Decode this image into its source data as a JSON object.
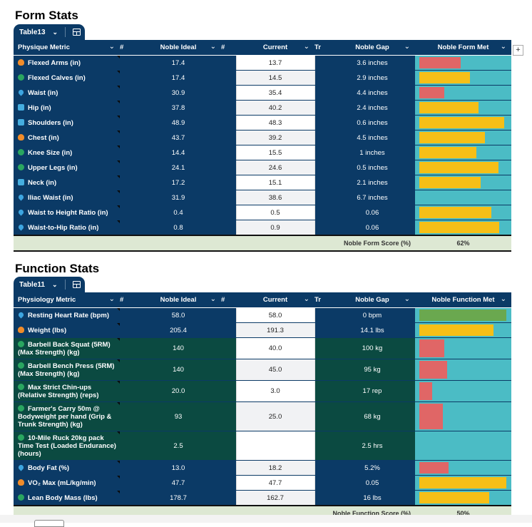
{
  "form": {
    "title": "Form Stats",
    "tab_name": "Table13",
    "headers": {
      "metric": "Physique Metric",
      "num1": "#",
      "ideal": "Noble Ideal",
      "num2": "#",
      "current": "Current",
      "tr": "Tr",
      "gap": "Noble Gap",
      "met": "Noble Form Met"
    },
    "rows": [
      {
        "icon": "flame-icon",
        "name": "Flexed Arms (in)",
        "ideal": "17.4",
        "current": "13.7",
        "gap": "3.6 inches",
        "bar": 0.49,
        "bar_color": "#e06666"
      },
      {
        "icon": "globe-icon",
        "name": "Flexed Calves (in)",
        "ideal": "17.4",
        "current": "14.5",
        "gap": "2.9 inches",
        "bar": 0.6,
        "bar_color": "#f6bf17"
      },
      {
        "icon": "drop-icon",
        "name": "Waist (in)",
        "ideal": "30.9",
        "current": "35.4",
        "gap": "4.4 inches",
        "bar": 0.29,
        "bar_color": "#e06666"
      },
      {
        "icon": "person-icon",
        "name": "Hip (in)",
        "ideal": "37.8",
        "current": "40.2",
        "gap": "2.4 inches",
        "bar": 0.7,
        "bar_color": "#f6bf17"
      },
      {
        "icon": "person-icon",
        "name": "Shoulders (in)",
        "ideal": "48.9",
        "current": "48.3",
        "gap": "0.6 inches",
        "bar": 1.0,
        "bar_color": "#f6bf17"
      },
      {
        "icon": "flame-icon",
        "name": "Chest (in)",
        "ideal": "43.7",
        "current": "39.2",
        "gap": "4.5 inches",
        "bar": 0.77,
        "bar_color": "#f6bf17"
      },
      {
        "icon": "globe-icon",
        "name": "Knee Size (in)",
        "ideal": "14.4",
        "current": "15.5",
        "gap": "1 inches",
        "bar": 0.67,
        "bar_color": "#f6bf17"
      },
      {
        "icon": "globe-icon",
        "name": "Upper Legs (in)",
        "ideal": "24.1",
        "current": "24.6",
        "gap": "0.5 inches",
        "bar": 0.93,
        "bar_color": "#f6bf17"
      },
      {
        "icon": "person-icon",
        "name": "Neck (in)",
        "ideal": "17.2",
        "current": "15.1",
        "gap": "2.1 inches",
        "bar": 0.72,
        "bar_color": "#f6bf17"
      },
      {
        "icon": "drop-icon",
        "name": "Iliac Waist (in)",
        "ideal": "31.9",
        "current": "38.6",
        "gap": "6.7 inches",
        "bar": 0,
        "bar_color": "#e06666"
      },
      {
        "icon": "drop-icon",
        "name": "Waist to Height Ratio (in)",
        "ideal": "0.4",
        "current": "0.5",
        "gap": "0.06",
        "bar": 0.85,
        "bar_color": "#f6bf17"
      },
      {
        "icon": "drop-icon",
        "name": "Waist-to-Hip Ratio (in)",
        "ideal": "0.8",
        "current": "0.9",
        "gap": "0.06",
        "bar": 0.94,
        "bar_color": "#f6bf17"
      }
    ],
    "score_label": "Noble Form Score (%)",
    "score_value": "62%"
  },
  "function": {
    "title": "Function Stats",
    "tab_name": "Table11",
    "headers": {
      "metric": "Physiology Metric",
      "num1": "#",
      "ideal": "Noble Ideal",
      "num2": "#",
      "current": "Current",
      "tr": "Tr",
      "gap": "Noble Gap",
      "met": "Noble Function Met"
    },
    "rows": [
      {
        "icon": "drop-icon",
        "name": "Resting Heart Rate (bpm)",
        "ideal": "58.0",
        "current": "58.0",
        "gap": "0 bpm",
        "bar": 1.0,
        "bar_color": "#6aa84f",
        "dark": false
      },
      {
        "icon": "flame-icon",
        "name": "Weight (lbs)",
        "ideal": "205.4",
        "current": "191.3",
        "gap": "14.1 lbs",
        "bar": 0.85,
        "bar_color": "#f6bf17",
        "dark": false
      },
      {
        "icon": "globe-icon",
        "name": "Barbell Back Squat (5RM) (Max Strength) (kg)",
        "ideal": "140",
        "current": "40.0",
        "gap": "100 kg",
        "bar": 0.29,
        "bar_color": "#e06666",
        "dark": true
      },
      {
        "icon": "globe-icon",
        "name": "Barbell Bench Press (5RM) (Max Strength) (kg)",
        "ideal": "140",
        "current": "45.0",
        "gap": "95 kg",
        "bar": 0.32,
        "bar_color": "#e06666",
        "dark": true
      },
      {
        "icon": "globe-icon",
        "name": "Max Strict Chin-ups (Relative Strength) (reps)",
        "ideal": "20.0",
        "current": "3.0",
        "gap": "17 rep",
        "bar": 0.15,
        "bar_color": "#e06666",
        "dark": true
      },
      {
        "icon": "globe-icon",
        "name": "Farmer's Carry 50m @ Bodyweight per hand (Grip & Trunk Strength) (kg)",
        "ideal": "93",
        "current": "25.0",
        "gap": "68 kg",
        "bar": 0.27,
        "bar_color": "#e06666",
        "dark": true
      },
      {
        "icon": "globe-icon",
        "name": "10-Mile Ruck 20kg pack Time Test (Loaded Endurance) (hours)",
        "ideal": "2.5",
        "current": "",
        "gap": "2.5 hrs",
        "bar": 0,
        "bar_color": "#e06666",
        "dark": true
      },
      {
        "icon": "drop-icon",
        "name": "Body Fat (%)",
        "ideal": "13.0",
        "current": "18.2",
        "gap": "5.2%",
        "bar": 0.34,
        "bar_color": "#e06666",
        "dark": false
      },
      {
        "icon": "flame-icon",
        "name": "VO₂ Max (mL/kg/min)",
        "ideal": "47.7",
        "current": "47.7",
        "gap": "0.05",
        "bar": 1.0,
        "bar_color": "#f6bf17",
        "dark": false
      },
      {
        "icon": "globe-icon",
        "name": "Lean Body Mass (lbs)",
        "ideal": "178.7",
        "current": "162.7",
        "gap": "16 lbs",
        "bar": 0.8,
        "bar_color": "#f6bf17",
        "dark": false
      }
    ],
    "score_label": "Noble Function Score (%)",
    "score_value": "50%"
  },
  "colors": {
    "header_navy": "#0b3a66",
    "dark_green": "#0b4a41",
    "teal": "#4bbcc5",
    "red": "#e06666",
    "yellow": "#f6bf17",
    "green": "#6aa84f",
    "footer": "#dde8d3"
  }
}
